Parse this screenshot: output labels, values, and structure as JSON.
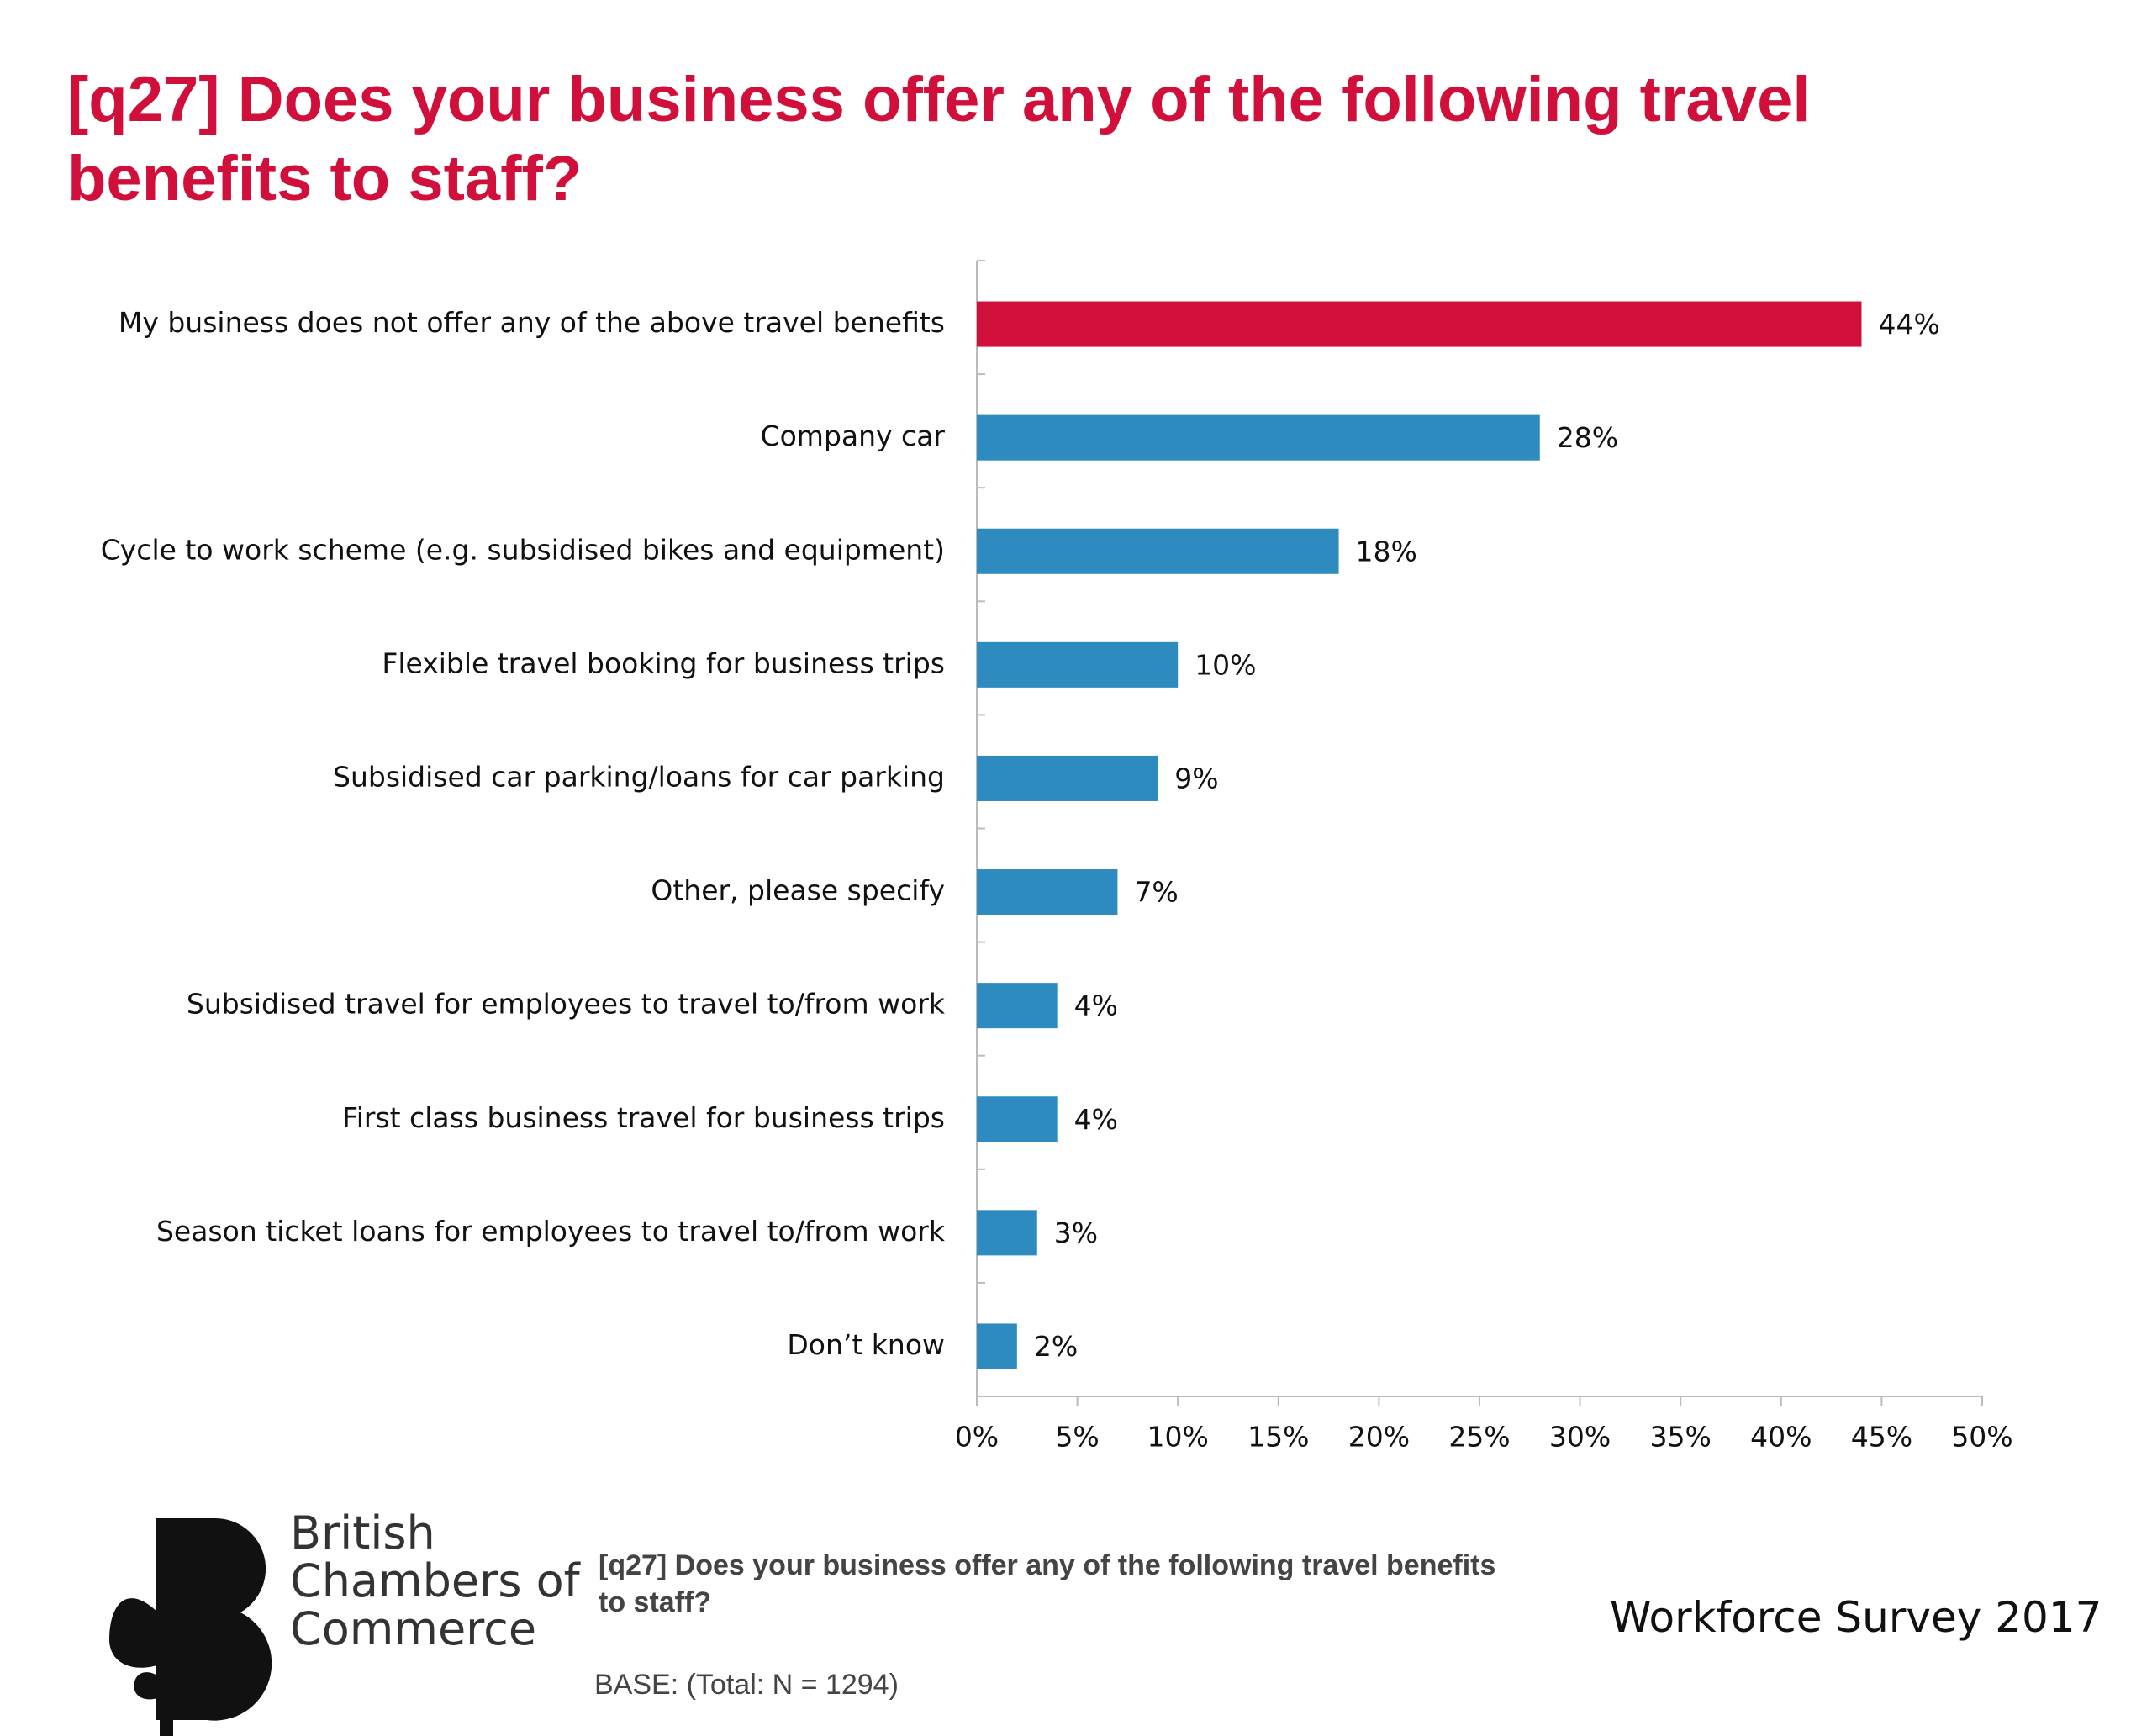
{
  "chart_data": {
    "type": "bar",
    "orientation": "horizontal",
    "title": "[q27] Does your business offer any of the following travel benefits to staff?",
    "categories": [
      "My business does not offer any of the above travel benefits",
      "Company car",
      "Cycle to work scheme (e.g. subsidised bikes and equipment)",
      "Flexible travel booking for business trips",
      "Subsidised car parking/loans for car parking",
      "Other, please specify",
      "Subsidised travel for employees to travel to/from work",
      "First class business travel for business trips",
      "Season ticket loans for employees to travel to/from work",
      "Don’t know"
    ],
    "values": [
      44,
      28,
      18,
      10,
      9,
      7,
      4,
      4,
      3,
      2
    ],
    "value_labels": [
      "44%",
      "28%",
      "18%",
      "10%",
      "9%",
      "7%",
      "4%",
      "4%",
      "3%",
      "2%"
    ],
    "colors": [
      "#d0103a",
      "#2e8bc0",
      "#2e8bc0",
      "#2e8bc0",
      "#2e8bc0",
      "#2e8bc0",
      "#2e8bc0",
      "#2e8bc0",
      "#2e8bc0",
      "#2e8bc0"
    ],
    "xlim": [
      0,
      50
    ],
    "xticks": [
      {
        "value": 0,
        "label": "0%"
      },
      {
        "value": 5,
        "label": "5%"
      },
      {
        "value": 10,
        "label": "10%"
      },
      {
        "value": 15,
        "label": "15%"
      },
      {
        "value": 20,
        "label": "20%"
      },
      {
        "value": 25,
        "label": "25%"
      },
      {
        "value": 30,
        "label": "30%"
      },
      {
        "value": 35,
        "label": "35%"
      },
      {
        "value": 40,
        "label": "40%"
      },
      {
        "value": 45,
        "label": "45%"
      },
      {
        "value": 50,
        "label": "50%"
      }
    ],
    "grid": false
  },
  "footer": {
    "logo_lines": [
      "British",
      "Chambers of",
      "Commerce"
    ],
    "question": "[q27] Does your business offer any of the following travel benefits to staff?",
    "base": "BASE: (Total: N = 1294)",
    "survey": "Workforce Survey 2017"
  }
}
